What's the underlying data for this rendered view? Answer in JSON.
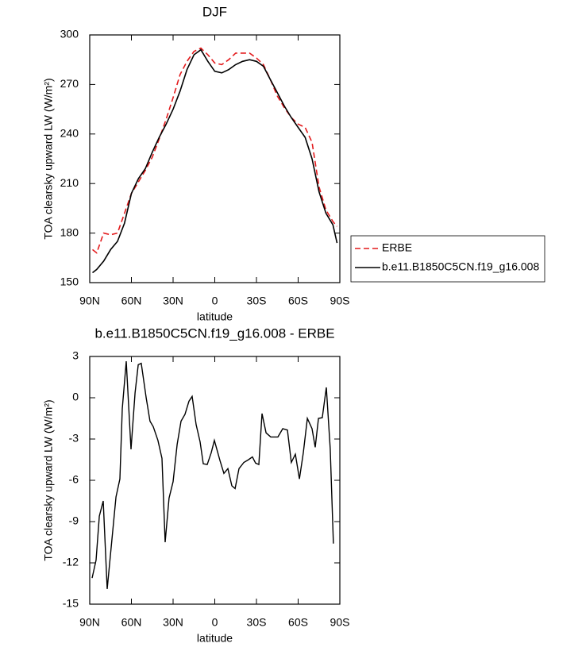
{
  "chart_data": [
    {
      "type": "line",
      "title": "DJF",
      "xlabel": "latitude",
      "ylabel": "TOA clearsky upward LW (W/m²)",
      "x": [
        88,
        85,
        80,
        75,
        70,
        65,
        60,
        55,
        50,
        45,
        40,
        35,
        30,
        25,
        20,
        15,
        10,
        5,
        0,
        -5,
        -10,
        -15,
        -20,
        -25,
        -30,
        -35,
        -40,
        -45,
        -50,
        -55,
        -60,
        -65,
        -70,
        -75,
        -80,
        -85,
        -88
      ],
      "series": [
        {
          "name": "ERBE",
          "color": "#e31a1c",
          "line_style": "dashed",
          "values": [
            170,
            168,
            180,
            179,
            180,
            192,
            204,
            211,
            218,
            226,
            237,
            249,
            262,
            276,
            284,
            290,
            292,
            288,
            283,
            282,
            285,
            289,
            289,
            289,
            286,
            282,
            273,
            263,
            256,
            250,
            246,
            244,
            235,
            208,
            194,
            187,
            184
          ]
        },
        {
          "name": "b.e11.B1850C5CN.f19_g16.008",
          "color": "#000000",
          "line_style": "solid",
          "values": [
            156,
            158,
            163,
            170,
            175,
            186,
            204,
            213,
            219,
            229,
            238,
            246,
            255,
            266,
            279,
            288,
            291,
            284,
            278,
            277,
            279,
            282,
            284,
            285,
            284,
            281,
            273,
            265,
            257,
            250,
            244,
            238,
            225,
            205,
            192,
            185,
            174
          ]
        }
      ],
      "xlim": [
        90,
        -90
      ],
      "xticks": [
        {
          "value": 90,
          "label": "90N"
        },
        {
          "value": 60,
          "label": "60N"
        },
        {
          "value": 30,
          "label": "30N"
        },
        0,
        {
          "value": -30,
          "label": "30S"
        },
        {
          "value": -60,
          "label": "60S"
        },
        {
          "value": -90,
          "label": "90S"
        }
      ],
      "ylim": [
        150,
        300
      ],
      "yticks": [
        150,
        180,
        210,
        240,
        270,
        300
      ],
      "legend": "outside-right"
    },
    {
      "type": "line",
      "title": "b.e11.B1850C5CN.f19_g16.008 - ERBE",
      "xlabel": "latitude",
      "ylabel": "TOA clearsky upward LW (W/m²)",
      "x": [
        88.3,
        85.4,
        83.1,
        80.3,
        77.4,
        71.1,
        68.3,
        66.6,
        63.7,
        60.3,
        57.4,
        55.1,
        52.9,
        49.4,
        46.6,
        44.3,
        40.9,
        38,
        35.7,
        32.9,
        30,
        27.1,
        24.3,
        21.4,
        18.6,
        16.3,
        13.4,
        10.6,
        8.3,
        5.4,
        2.6,
        0.3,
        -3.7,
        -6.6,
        -9.4,
        -12.3,
        -14.6,
        -17.4,
        -20.9,
        -24.3,
        -27.1,
        -29.4,
        -31.7,
        -34,
        -36.9,
        -40.3,
        -45.4,
        -48.9,
        -52.3,
        -55.1,
        -58,
        -60.9,
        -63.7,
        -66.6,
        -70,
        -72.3,
        -74.6,
        -77.4,
        -80.3,
        -83.1,
        -85.4
      ],
      "color": "#000000",
      "values": [
        -13.1,
        -11.8,
        -8.6,
        -7.5,
        -13.9,
        -7.2,
        -5.9,
        -0.8,
        2.65,
        -3.75,
        0.35,
        2.4,
        2.5,
        0,
        -1.7,
        -2.1,
        -3.1,
        -4.4,
        -10.5,
        -7.3,
        -6.1,
        -3.4,
        -1.7,
        -1.2,
        -0.25,
        0.1,
        -1.95,
        -3.2,
        -4.8,
        -4.85,
        -4.0,
        -3.1,
        -4.55,
        -5.5,
        -5.15,
        -6.4,
        -6.6,
        -5.15,
        -4.7,
        -4.5,
        -4.3,
        -4.75,
        -4.85,
        -1.15,
        -2.55,
        -2.85,
        -2.85,
        -2.25,
        -2.35,
        -4.7,
        -4.1,
        -5.9,
        -4.0,
        -1.5,
        -2.25,
        -3.6,
        -1.5,
        -1.45,
        0.75,
        -3.7,
        -10.6
      ],
      "xlim": [
        90,
        -90
      ],
      "xticks": [
        {
          "value": 90,
          "label": "90N"
        },
        {
          "value": 60,
          "label": "60N"
        },
        {
          "value": 30,
          "label": "30N"
        },
        0,
        {
          "value": -30,
          "label": "30S"
        },
        {
          "value": -60,
          "label": "60S"
        },
        {
          "value": -90,
          "label": "90S"
        }
      ],
      "ylim": [
        -15,
        3
      ],
      "yticks": [
        -15,
        -12,
        -9,
        -6,
        -3,
        0,
        3
      ]
    }
  ]
}
